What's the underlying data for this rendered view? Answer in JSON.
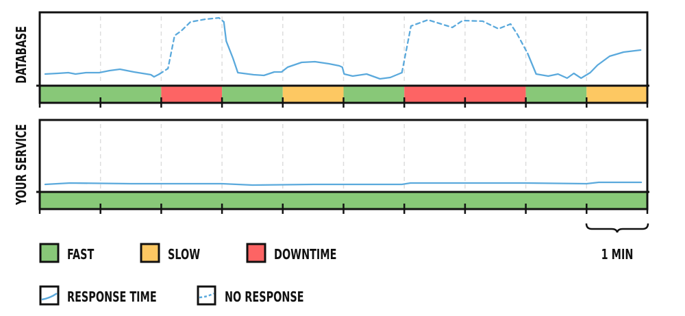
{
  "chart_data": [
    {
      "type": "line",
      "title": "DATABASE",
      "x_unit_label": "1 MIN",
      "xlim": [
        0,
        10
      ],
      "grid": "vertical-dashed",
      "status_segments": [
        {
          "start": 0,
          "end": 2,
          "status": "fast"
        },
        {
          "start": 2,
          "end": 3,
          "status": "downtime"
        },
        {
          "start": 3,
          "end": 4,
          "status": "fast"
        },
        {
          "start": 4,
          "end": 5,
          "status": "slow"
        },
        {
          "start": 5,
          "end": 6,
          "status": "fast"
        },
        {
          "start": 6,
          "end": 8,
          "status": "downtime"
        },
        {
          "start": 8,
          "end": 9,
          "status": "fast"
        },
        {
          "start": 9,
          "end": 10,
          "status": "slow"
        }
      ],
      "series": [
        {
          "style": "response-time",
          "points": [
            [
              0.09,
              15.9
            ],
            [
              0.3,
              16.8
            ],
            [
              0.47,
              17.8
            ],
            [
              0.59,
              15.9
            ],
            [
              0.76,
              17.8
            ],
            [
              0.98,
              17.8
            ],
            [
              1.15,
              20.6
            ],
            [
              1.32,
              22.4
            ],
            [
              1.55,
              18.7
            ],
            [
              1.83,
              15.0
            ],
            [
              1.88,
              12.1
            ],
            [
              1.97,
              15.9
            ]
          ]
        },
        {
          "style": "no-response",
          "points": [
            [
              1.97,
              15.9
            ],
            [
              2.11,
              23.4
            ],
            [
              2.22,
              68.2
            ],
            [
              2.33,
              74.8
            ],
            [
              2.48,
              86.9
            ],
            [
              2.73,
              90.7
            ],
            [
              2.95,
              92.5
            ],
            [
              3.03,
              86.9
            ]
          ]
        },
        {
          "style": "response-time",
          "points": [
            [
              3.03,
              86.9
            ],
            [
              3.07,
              60.7
            ],
            [
              3.18,
              37.4
            ],
            [
              3.26,
              17.8
            ],
            [
              3.52,
              15.0
            ],
            [
              3.69,
              14.0
            ],
            [
              3.86,
              18.7
            ],
            [
              3.98,
              18.7
            ],
            [
              4.08,
              25.2
            ],
            [
              4.31,
              31.8
            ],
            [
              4.53,
              32.7
            ],
            [
              4.76,
              29.9
            ],
            [
              4.93,
              27.1
            ],
            [
              4.98,
              25.2
            ],
            [
              5.01,
              15.9
            ],
            [
              5.15,
              13.1
            ],
            [
              5.38,
              15.9
            ],
            [
              5.6,
              9.3
            ],
            [
              5.77,
              11.2
            ],
            [
              5.96,
              17.8
            ]
          ]
        },
        {
          "style": "no-response",
          "points": [
            [
              5.96,
              17.8
            ],
            [
              6.11,
              81.3
            ],
            [
              6.39,
              89.7
            ],
            [
              6.79,
              79.4
            ],
            [
              6.96,
              88.8
            ],
            [
              7.29,
              87.9
            ],
            [
              7.55,
              77.6
            ],
            [
              7.75,
              84.1
            ],
            [
              7.86,
              70.1
            ],
            [
              8.03,
              43.9
            ]
          ]
        },
        {
          "style": "response-time",
          "points": [
            [
              8.03,
              43.9
            ],
            [
              8.17,
              15.9
            ],
            [
              8.37,
              13.1
            ],
            [
              8.53,
              15.9
            ],
            [
              8.68,
              10.3
            ],
            [
              8.79,
              16.8
            ],
            [
              8.91,
              10.3
            ],
            [
              9.06,
              17.8
            ],
            [
              9.18,
              28.0
            ],
            [
              9.38,
              40.2
            ],
            [
              9.61,
              45.8
            ],
            [
              9.89,
              48.6
            ]
          ]
        }
      ]
    },
    {
      "type": "line",
      "title": "YOUR SERVICE",
      "xlim": [
        0,
        10
      ],
      "grid": "vertical-dashed",
      "status_segments": [
        {
          "start": 0,
          "end": 10,
          "status": "fast"
        }
      ],
      "series": [
        {
          "style": "response-time",
          "points": [
            [
              0.09,
              10.5
            ],
            [
              0.5,
              12.4
            ],
            [
              1.5,
              11.4
            ],
            [
              3,
              11.4
            ],
            [
              3.5,
              9.5
            ],
            [
              4.5,
              10.5
            ],
            [
              5.96,
              10.5
            ],
            [
              6.1,
              12.4
            ],
            [
              8,
              12.4
            ],
            [
              9,
              11.4
            ],
            [
              9.2,
              13.3
            ],
            [
              9.9,
              13.3
            ]
          ]
        }
      ]
    }
  ],
  "legend": {
    "status": [
      {
        "key": "fast",
        "label": "FAST"
      },
      {
        "key": "slow",
        "label": "SLOW"
      },
      {
        "key": "downtime",
        "label": "DOWNTIME"
      }
    ],
    "lines": [
      {
        "key": "response-time",
        "label": "RESPONSE TIME"
      },
      {
        "key": "no-response",
        "label": "NO RESPONSE"
      }
    ],
    "scale_label": "1 MIN"
  },
  "colors": {
    "fast": "#88c878",
    "slow": "#fdc862",
    "downtime": "#fd6464",
    "line": "#5aa9dc",
    "grid": "#dddddd",
    "ink": "#111111"
  }
}
